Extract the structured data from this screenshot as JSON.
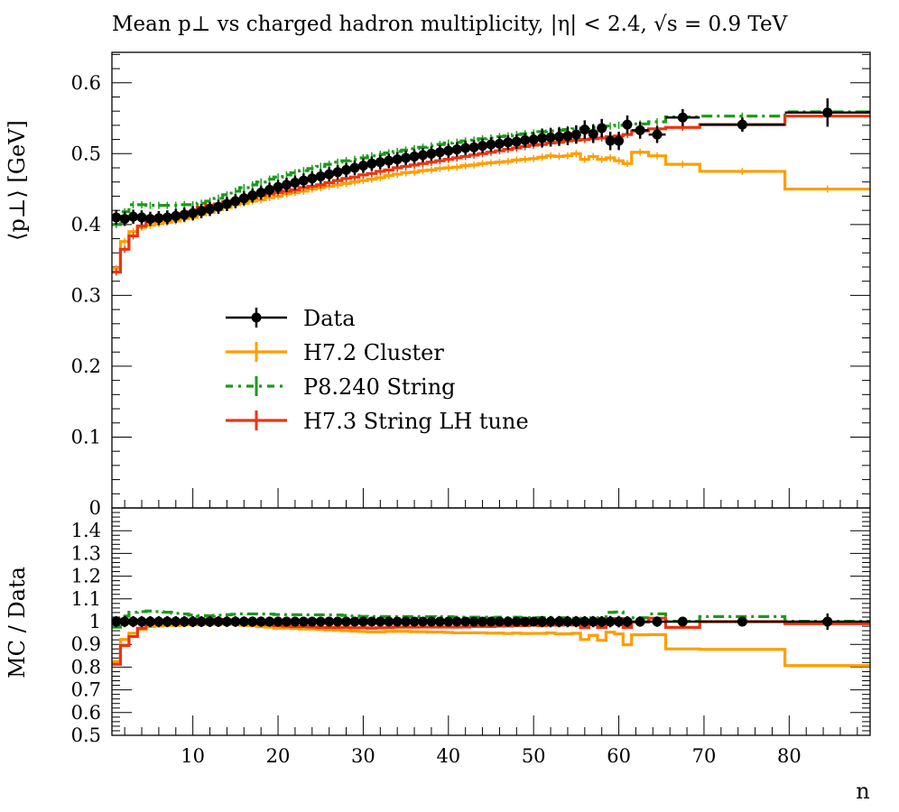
{
  "chart_data": {
    "type": "line",
    "title": "Mean p⊥ vs charged hadron multiplicity, |η| < 2.4, √s = 0.9 TeV",
    "xlabel": "n",
    "ylabel": "⟨p⊥⟩ [GeV]",
    "ratio_ylabel": "MC / Data",
    "xlim": [
      0.5,
      89.5
    ],
    "ylim": [
      0,
      0.643
    ],
    "ratio_ylim": [
      0.5,
      1.5
    ],
    "x_ticks": [
      "10",
      "20",
      "30",
      "40",
      "50",
      "60",
      "70",
      "80"
    ],
    "y_ticks": [
      "0",
      "0.1",
      "0.2",
      "0.3",
      "0.4",
      "0.5",
      "0.6"
    ],
    "ratio_ticks": [
      "0.5",
      "0.6",
      "0.7",
      "0.8",
      "0.9",
      "1",
      "1.1",
      "1.2",
      "1.3",
      "1.4"
    ],
    "legend_position": "center-left",
    "bin_edges": [
      0.5,
      1.5,
      2.5,
      3.5,
      4.5,
      5.5,
      6.5,
      7.5,
      8.5,
      9.5,
      10.5,
      11.5,
      12.5,
      13.5,
      14.5,
      15.5,
      16.5,
      17.5,
      18.5,
      19.5,
      20.5,
      21.5,
      22.5,
      23.5,
      24.5,
      25.5,
      26.5,
      27.5,
      28.5,
      29.5,
      30.5,
      31.5,
      32.5,
      33.5,
      34.5,
      35.5,
      36.5,
      37.5,
      38.5,
      39.5,
      40.5,
      41.5,
      42.5,
      43.5,
      44.5,
      45.5,
      46.5,
      47.5,
      48.5,
      49.5,
      50.5,
      51.5,
      52.5,
      53.5,
      54.5,
      55.5,
      56.5,
      57.5,
      58.5,
      59.5,
      60.5,
      61.5,
      63.5,
      65.5,
      69.5,
      79.5,
      89.5
    ],
    "series": [
      {
        "name": "Data",
        "color": "#000000",
        "style": "points",
        "values": [
          0.41,
          0.408,
          0.411,
          0.41,
          0.408,
          0.409,
          0.41,
          0.412,
          0.414,
          0.416,
          0.419,
          0.422,
          0.425,
          0.429,
          0.433,
          0.437,
          0.441,
          0.445,
          0.449,
          0.453,
          0.456,
          0.459,
          0.462,
          0.465,
          0.468,
          0.471,
          0.474,
          0.477,
          0.48,
          0.483,
          0.486,
          0.488,
          0.49,
          0.492,
          0.494,
          0.496,
          0.498,
          0.5,
          0.502,
          0.504,
          0.506,
          0.508,
          0.509,
          0.511,
          0.513,
          0.514,
          0.516,
          0.517,
          0.519,
          0.52,
          0.522,
          0.523,
          0.524,
          0.525,
          0.527,
          0.534,
          0.528,
          0.536,
          0.518,
          0.518,
          0.541,
          0.533,
          0.527,
          0.551,
          0.541,
          0.558
        ],
        "errors": [
          0.01,
          0.01,
          0.01,
          0.01,
          0.01,
          0.01,
          0.01,
          0.01,
          0.01,
          0.01,
          0.01,
          0.01,
          0.01,
          0.01,
          0.01,
          0.01,
          0.01,
          0.01,
          0.01,
          0.01,
          0.01,
          0.01,
          0.01,
          0.01,
          0.01,
          0.01,
          0.01,
          0.01,
          0.01,
          0.01,
          0.01,
          0.01,
          0.01,
          0.01,
          0.01,
          0.01,
          0.01,
          0.01,
          0.01,
          0.01,
          0.01,
          0.01,
          0.01,
          0.01,
          0.01,
          0.01,
          0.01,
          0.01,
          0.01,
          0.01,
          0.013,
          0.013,
          0.013,
          0.013,
          0.013,
          0.013,
          0.013,
          0.013,
          0.013,
          0.013,
          0.013,
          0.012,
          0.012,
          0.012,
          0.01,
          0.02
        ]
      },
      {
        "name": "H7.2 Cluster",
        "color": "#ff9e00",
        "style": "solid",
        "values": [
          0.338,
          0.376,
          0.39,
          0.396,
          0.399,
          0.401,
          0.403,
          0.405,
          0.408,
          0.41,
          0.414,
          0.417,
          0.421,
          0.424,
          0.428,
          0.43,
          0.433,
          0.435,
          0.438,
          0.44,
          0.443,
          0.445,
          0.447,
          0.45,
          0.452,
          0.454,
          0.456,
          0.458,
          0.46,
          0.462,
          0.464,
          0.466,
          0.469,
          0.471,
          0.473,
          0.474,
          0.476,
          0.477,
          0.479,
          0.48,
          0.481,
          0.483,
          0.484,
          0.486,
          0.487,
          0.488,
          0.489,
          0.491,
          0.492,
          0.493,
          0.495,
          0.497,
          0.496,
          0.497,
          0.5,
          0.492,
          0.496,
          0.492,
          0.494,
          0.49,
          0.486,
          0.502,
          0.497,
          0.485,
          0.475,
          0.45
        ]
      },
      {
        "name": "P8.240 String",
        "color": "#1a9a1a",
        "style": "dashdot",
        "values": [
          0.4,
          0.418,
          0.428,
          0.428,
          0.427,
          0.427,
          0.427,
          0.427,
          0.428,
          0.428,
          0.43,
          0.433,
          0.437,
          0.442,
          0.447,
          0.452,
          0.456,
          0.46,
          0.464,
          0.467,
          0.47,
          0.473,
          0.476,
          0.479,
          0.482,
          0.485,
          0.488,
          0.49,
          0.492,
          0.494,
          0.497,
          0.499,
          0.501,
          0.503,
          0.505,
          0.507,
          0.509,
          0.511,
          0.513,
          0.515,
          0.516,
          0.518,
          0.519,
          0.521,
          0.522,
          0.524,
          0.525,
          0.527,
          0.528,
          0.529,
          0.531,
          0.532,
          0.533,
          0.534,
          0.535,
          0.536,
          0.537,
          0.538,
          0.539,
          0.54,
          0.541,
          0.542,
          0.545,
          0.552,
          0.553,
          0.559
        ]
      },
      {
        "name": "H7.3 String LH tune",
        "color": "#ee3311",
        "style": "solid",
        "values": [
          0.333,
          0.365,
          0.384,
          0.398,
          0.405,
          0.408,
          0.411,
          0.413,
          0.415,
          0.418,
          0.424,
          0.427,
          0.429,
          0.432,
          0.434,
          0.436,
          0.438,
          0.441,
          0.443,
          0.445,
          0.447,
          0.449,
          0.452,
          0.454,
          0.456,
          0.459,
          0.462,
          0.465,
          0.467,
          0.47,
          0.472,
          0.475,
          0.477,
          0.48,
          0.482,
          0.484,
          0.486,
          0.488,
          0.49,
          0.492,
          0.494,
          0.496,
          0.498,
          0.5,
          0.502,
          0.504,
          0.506,
          0.508,
          0.51,
          0.512,
          0.513,
          0.515,
          0.516,
          0.518,
          0.519,
          0.52,
          0.521,
          0.522,
          0.524,
          0.525,
          0.527,
          0.532,
          0.535,
          0.537,
          0.541,
          0.553
        ]
      }
    ]
  }
}
